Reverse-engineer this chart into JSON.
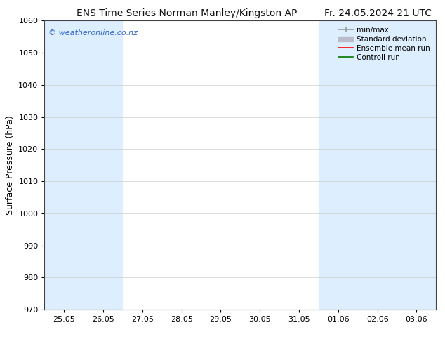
{
  "title_left": "ENS Time Series Norman Manley/Kingston AP",
  "title_right": "Fr. 24.05.2024 21 UTC",
  "ylabel": "Surface Pressure (hPa)",
  "ylim": [
    970,
    1060
  ],
  "yticks": [
    970,
    980,
    990,
    1000,
    1010,
    1020,
    1030,
    1040,
    1050,
    1060
  ],
  "xtick_labels": [
    "25.05",
    "26.05",
    "27.05",
    "28.05",
    "29.05",
    "30.05",
    "31.05",
    "01.06",
    "02.06",
    "03.06"
  ],
  "bg_color": "#ffffff",
  "plot_bg_color": "#ffffff",
  "shaded_band_color": "#ddeeff",
  "shaded_columns": [
    0,
    1,
    7,
    8,
    9
  ],
  "watermark_text": "© weatheronline.co.nz",
  "watermark_color": "#3366cc",
  "legend_items": [
    {
      "label": "min/max",
      "color": "#999999",
      "lw": 1.5
    },
    {
      "label": "Standard deviation",
      "color": "#bbbbcc",
      "lw": 5
    },
    {
      "label": "Ensemble mean run",
      "color": "#ff0000",
      "lw": 1.5
    },
    {
      "label": "Controll run",
      "color": "#007700",
      "lw": 1.5
    }
  ],
  "title_fontsize": 10,
  "tick_fontsize": 8,
  "ylabel_fontsize": 9,
  "legend_fontsize": 7.5,
  "grid_color": "#cccccc",
  "spine_color": "#444444",
  "n_cols": 10
}
